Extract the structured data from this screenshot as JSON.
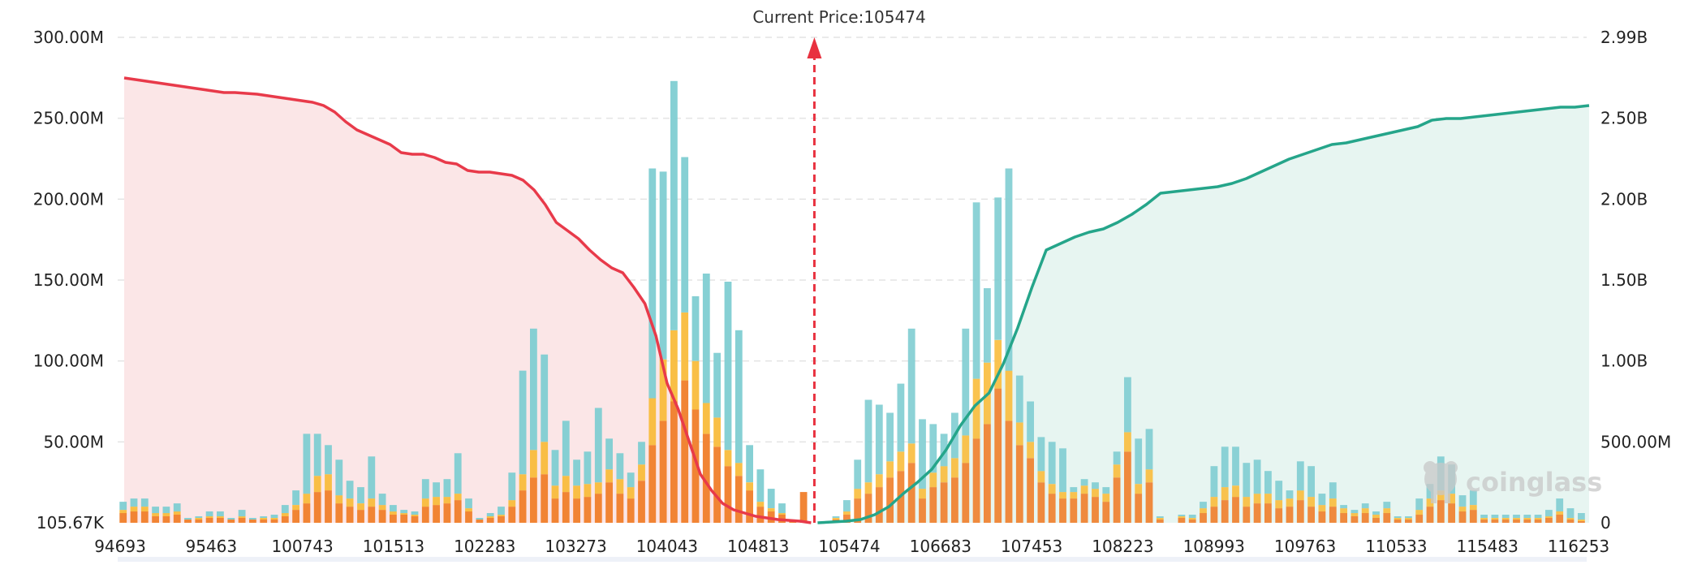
{
  "chart_data": {
    "type": "bar",
    "current_price_label": "Current Price:105474",
    "current_price": 105474,
    "y_left": {
      "ticks": [
        "300.00M",
        "250.00M",
        "200.00M",
        "150.00M",
        "100.00M",
        "50.00M",
        "105.67K"
      ],
      "ylim": [
        0,
        300000000
      ]
    },
    "y_right": {
      "ticks": [
        "2.99B",
        "2.50B",
        "2.00B",
        "1.50B",
        "1.00B",
        "500.00M",
        "0"
      ],
      "ylim": [
        0,
        2990000000
      ]
    },
    "x_tick_labels": [
      "94693",
      "95463",
      "100743",
      "101513",
      "102283",
      "103273",
      "104043",
      "104813",
      "105474",
      "106683",
      "107453",
      "108223",
      "108993",
      "109763",
      "110533",
      "115483",
      "116253"
    ],
    "grid": true,
    "watermark": "coinglass",
    "colors": {
      "series_1": "#f07e2a",
      "series_2": "#f9bc3c",
      "series_3": "#7fcdd2",
      "long_line": "#e83a4a",
      "long_fill": "#fbe6e7",
      "short_line": "#25a58a",
      "short_fill": "#e7f5f1",
      "price_marker": "#e8313f"
    },
    "bars": {
      "series_1": [
        6,
        7,
        7,
        4,
        4,
        5,
        2,
        2,
        3,
        3,
        2,
        3,
        2,
        2,
        2,
        4,
        8,
        12,
        19,
        20,
        12,
        10,
        8,
        10,
        8,
        5,
        5,
        4,
        10,
        11,
        12,
        14,
        7,
        2,
        3,
        4,
        10,
        20,
        28,
        30,
        15,
        19,
        15,
        16,
        18,
        25,
        18,
        15,
        26,
        48,
        63,
        75,
        88,
        70,
        55,
        47,
        35,
        29,
        20,
        10,
        7,
        5,
        1,
        19,
        0,
        1,
        2,
        5,
        15,
        18,
        22,
        28,
        32,
        37,
        15,
        22,
        25,
        28,
        37,
        52,
        61,
        83,
        63,
        48,
        40,
        25,
        18,
        15,
        15,
        18,
        16,
        13,
        28,
        44,
        18,
        25,
        2,
        0,
        3,
        2,
        6,
        10,
        14,
        16,
        10,
        12,
        12,
        9,
        10,
        14,
        10,
        7,
        10,
        6,
        4,
        6,
        3,
        6,
        2,
        2,
        5,
        10,
        14,
        12,
        7,
        8,
        2,
        2,
        2,
        2,
        2,
        2,
        3,
        5,
        2,
        1
      ],
      "series_2": [
        2,
        3,
        3,
        2,
        2,
        2,
        0,
        1,
        1,
        1,
        0,
        1,
        0,
        1,
        1,
        2,
        3,
        6,
        10,
        10,
        5,
        5,
        4,
        5,
        3,
        2,
        1,
        1,
        5,
        5,
        4,
        4,
        2,
        0,
        1,
        1,
        4,
        10,
        17,
        20,
        8,
        10,
        8,
        8,
        7,
        8,
        9,
        7,
        10,
        29,
        38,
        44,
        42,
        30,
        19,
        18,
        10,
        8,
        5,
        3,
        2,
        1,
        0,
        0,
        0,
        0,
        1,
        2,
        6,
        7,
        8,
        10,
        12,
        12,
        6,
        9,
        10,
        12,
        17,
        37,
        38,
        30,
        31,
        14,
        10,
        7,
        6,
        4,
        4,
        5,
        5,
        5,
        8,
        12,
        6,
        8,
        1,
        0,
        1,
        1,
        3,
        6,
        8,
        7,
        6,
        6,
        6,
        5,
        5,
        6,
        6,
        4,
        5,
        3,
        2,
        3,
        2,
        3,
        1,
        1,
        3,
        5,
        6,
        6,
        3,
        3,
        1,
        1,
        1,
        1,
        1,
        1,
        1,
        2,
        1,
        1
      ],
      "series_3": [
        5,
        5,
        5,
        4,
        4,
        5,
        1,
        1,
        3,
        3,
        1,
        4,
        1,
        1,
        2,
        5,
        9,
        37,
        26,
        18,
        22,
        11,
        10,
        26,
        7,
        4,
        2,
        2,
        12,
        9,
        11,
        25,
        6,
        1,
        2,
        5,
        17,
        64,
        75,
        54,
        22,
        34,
        16,
        20,
        46,
        19,
        16,
        9,
        14,
        142,
        116,
        154,
        96,
        40,
        80,
        40,
        104,
        82,
        23,
        20,
        12,
        6,
        0,
        0,
        0,
        0,
        1,
        7,
        18,
        51,
        43,
        30,
        42,
        71,
        43,
        30,
        20,
        28,
        66,
        109,
        46,
        88,
        125,
        29,
        25,
        21,
        26,
        27,
        3,
        4,
        4,
        4,
        8,
        34,
        28,
        25,
        1,
        0,
        1,
        2,
        4,
        19,
        25,
        24,
        21,
        21,
        14,
        12,
        5,
        18,
        19,
        7,
        10,
        2,
        2,
        3,
        2,
        4,
        1,
        1,
        7,
        9,
        21,
        18,
        7,
        9,
        2,
        2,
        2,
        2,
        2,
        2,
        4,
        8,
        6,
        4
      ]
    },
    "long_cumulative_B": [
      2.74,
      2.73,
      2.72,
      2.71,
      2.7,
      2.69,
      2.68,
      2.67,
      2.66,
      2.65,
      2.65,
      2.645,
      2.64,
      2.63,
      2.62,
      2.61,
      2.6,
      2.59,
      2.57,
      2.53,
      2.47,
      2.42,
      2.39,
      2.36,
      2.33,
      2.28,
      2.27,
      2.27,
      2.25,
      2.22,
      2.21,
      2.17,
      2.16,
      2.16,
      2.15,
      2.14,
      2.11,
      2.05,
      1.96,
      1.85,
      1.8,
      1.75,
      1.68,
      1.62,
      1.57,
      1.54,
      1.45,
      1.35,
      1.15,
      0.86,
      0.7,
      0.5,
      0.3,
      0.2,
      0.12,
      0.08,
      0.06,
      0.04,
      0.03,
      0.02,
      0.015,
      0.01,
      0.0
    ],
    "short_cumulative_B": [
      0.0,
      0.005,
      0.01,
      0.02,
      0.05,
      0.1,
      0.18,
      0.25,
      0.33,
      0.45,
      0.6,
      0.72,
      0.8,
      0.98,
      1.2,
      1.45,
      1.68,
      1.72,
      1.76,
      1.79,
      1.81,
      1.85,
      1.9,
      1.96,
      2.03,
      2.04,
      2.05,
      2.06,
      2.07,
      2.09,
      2.12,
      2.16,
      2.2,
      2.24,
      2.27,
      2.3,
      2.33,
      2.34,
      2.36,
      2.38,
      2.4,
      2.42,
      2.44,
      2.48,
      2.49,
      2.49,
      2.5,
      2.51,
      2.52,
      2.53,
      2.54,
      2.55,
      2.56,
      2.56,
      2.57
    ]
  }
}
